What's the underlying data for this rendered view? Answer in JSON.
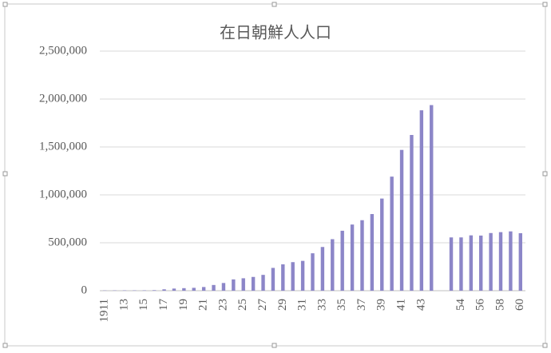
{
  "chart_data": {
    "type": "bar",
    "title": "在日朝鮮人人口",
    "categories": [
      "1911",
      null,
      "13",
      null,
      "15",
      null,
      "17",
      null,
      "19",
      null,
      "21",
      null,
      "23",
      null,
      "25",
      null,
      "27",
      null,
      "29",
      null,
      "31",
      null,
      "33",
      null,
      "35",
      null,
      "37",
      null,
      "39",
      null,
      "41",
      null,
      "43",
      null,
      null,
      null,
      "54",
      null,
      "56",
      null,
      "58",
      null,
      "60"
    ],
    "values": [
      2527,
      3171,
      3635,
      3542,
      3917,
      5624,
      14502,
      22411,
      26605,
      30189,
      38651,
      59722,
      80415,
      118152,
      129870,
      143798,
      165286,
      238102,
      275206,
      298091,
      311247,
      390543,
      456217,
      537695,
      625678,
      690501,
      735689,
      799878,
      961591,
      1190444,
      1469230,
      1625054,
      1882456,
      1936843,
      null,
      556084,
      556239,
      577682,
      575287,
      601769,
      611085,
      619096,
      600000
    ],
    "color": "#8c86c8",
    "ylim": [
      0,
      2500000
    ],
    "yticks": [
      0,
      {
        "value": 500000,
        "label": "500,000"
      },
      {
        "value": 1000000,
        "label": "1,000,000"
      },
      {
        "value": 1500000,
        "label": "1,500,000"
      },
      {
        "value": 2000000,
        "label": "2,000,000"
      },
      {
        "value": 2500000,
        "label": "2,500,000"
      }
    ],
    "grid": true
  }
}
